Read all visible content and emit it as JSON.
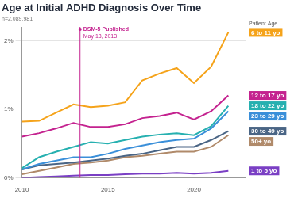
{
  "chart_data": {
    "type": "line",
    "title": "Age at Initial ADHD Diagnosis Over Time",
    "subtitle": "n=2,089,981",
    "legend_title": "Patient Age",
    "x": [
      2010,
      2011,
      2012,
      2013,
      2014,
      2015,
      2016,
      2017,
      2018,
      2019,
      2020,
      2021,
      2022
    ],
    "series": [
      {
        "name": "6 to 11 yo",
        "color": "#f5a31a",
        "values": [
          0.82,
          0.83,
          0.95,
          1.07,
          1.03,
          1.05,
          1.1,
          1.42,
          1.52,
          1.6,
          1.38,
          1.62,
          2.12
        ]
      },
      {
        "name": "12 to 17 yo",
        "color": "#c4228f",
        "values": [
          0.6,
          0.65,
          0.72,
          0.8,
          0.74,
          0.74,
          0.78,
          0.87,
          0.9,
          0.95,
          0.85,
          0.97,
          1.2
        ]
      },
      {
        "name": "18 to 22 yo",
        "color": "#26b0b0",
        "values": [
          0.14,
          0.3,
          0.38,
          0.45,
          0.52,
          0.5,
          0.55,
          0.6,
          0.63,
          0.65,
          0.62,
          0.75,
          1.05
        ]
      },
      {
        "name": "23 to 29 yo",
        "color": "#3a8fd9",
        "values": [
          0.12,
          0.2,
          0.25,
          0.3,
          0.3,
          0.35,
          0.42,
          0.47,
          0.52,
          0.55,
          0.57,
          0.72,
          0.97
        ]
      },
      {
        "name": "30 to 49 yo",
        "color": "#4a6585",
        "values": [
          0.12,
          0.18,
          0.2,
          0.22,
          0.25,
          0.28,
          0.32,
          0.35,
          0.4,
          0.45,
          0.45,
          0.55,
          0.68
        ]
      },
      {
        "name": "50+ yo",
        "color": "#b08a6a",
        "values": [
          0.05,
          0.1,
          0.15,
          0.2,
          0.22,
          0.25,
          0.3,
          0.32,
          0.35,
          0.38,
          0.38,
          0.45,
          0.62
        ]
      },
      {
        "name": "1 to 5 yo",
        "color": "#7a3fc4",
        "values": [
          0.0,
          0.01,
          0.02,
          0.03,
          0.04,
          0.04,
          0.05,
          0.06,
          0.06,
          0.07,
          0.06,
          0.07,
          0.1
        ]
      }
    ],
    "xlim": [
      2010,
      2023
    ],
    "xticks": [
      2010,
      2015,
      2020
    ],
    "ylim": [
      0,
      2.2
    ],
    "yticks": [
      {
        "value": 0,
        "label": "0%"
      },
      {
        "value": 1,
        "label": "1%"
      },
      {
        "value": 2,
        "label": "2%"
      }
    ],
    "grid": true,
    "legend": "right",
    "annotations": [
      {
        "x": 2013.38,
        "label": "DSM-5 Published",
        "sublabel": "May 18, 2013"
      }
    ]
  }
}
